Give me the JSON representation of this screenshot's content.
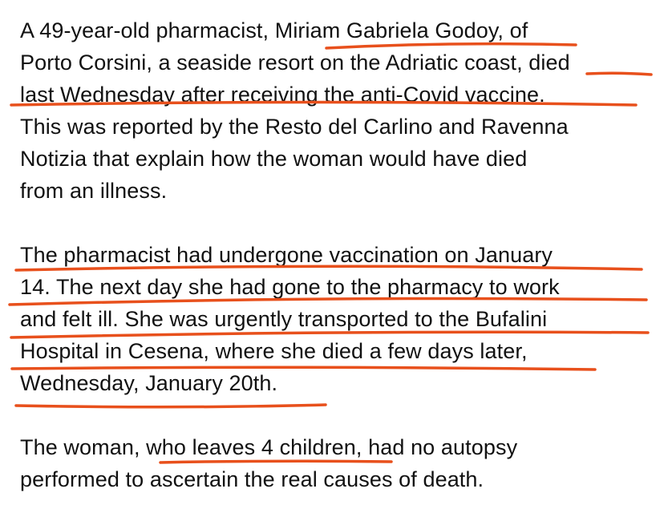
{
  "article": {
    "paragraphs": [
      {
        "lines": [
          "A 49-year-old pharmacist, Miriam Gabriela Godoy, of",
          "Porto Corsini, a seaside resort on the Adriatic coast, died",
          "last Wednesday after receiving the anti-Covid vaccine.",
          "This was reported by the Resto del Carlino and Ravenna",
          "Notizia that explain how the woman would have died",
          "from an illness."
        ]
      },
      {
        "lines": [
          "The pharmacist had undergone vaccination on January",
          "14. The next day she had gone to the pharmacy to work",
          "and felt ill. She was urgently transported to the Bufalini",
          "Hospital in Cesena, where she died a few days later,",
          "Wednesday, January 20th."
        ]
      },
      {
        "lines": [
          "The woman, who leaves 4 children, had no autopsy",
          "performed to ascertain the real causes of death."
        ]
      }
    ]
  },
  "annotations": {
    "underline_color": "#e8501c"
  }
}
